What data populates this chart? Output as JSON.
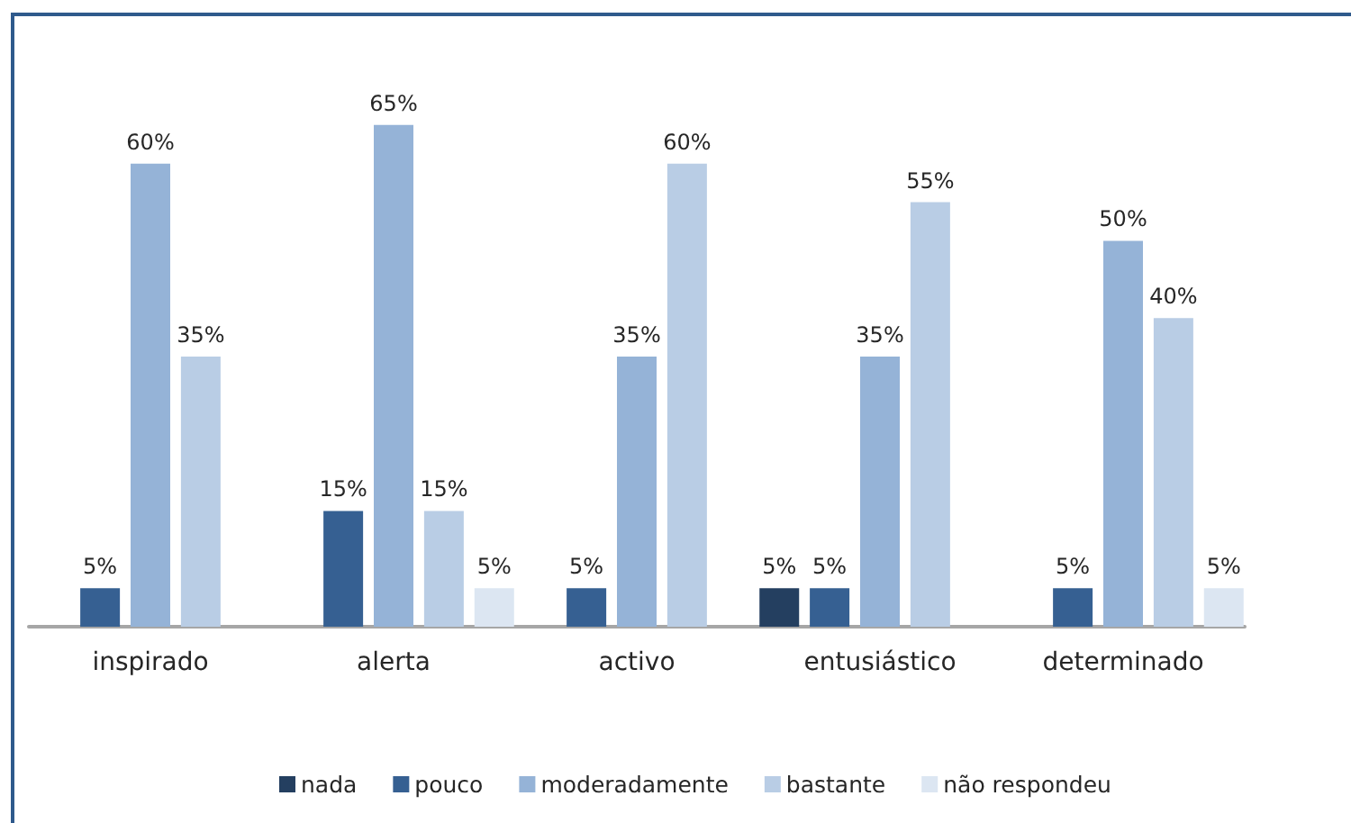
{
  "chart_data": {
    "type": "bar",
    "categories": [
      "inspirado",
      "alerta",
      "activo",
      "entusiástico",
      "determinado"
    ],
    "series": [
      {
        "name": "nada",
        "color": "#243f60",
        "values": [
          null,
          null,
          null,
          5,
          null
        ],
        "value_labels": [
          null,
          null,
          null,
          "5%",
          null
        ]
      },
      {
        "name": "pouco",
        "color": "#366092",
        "values": [
          5,
          15,
          5,
          5,
          5
        ],
        "value_labels": [
          "5%",
          "15%",
          "5%",
          "5%",
          "5%"
        ]
      },
      {
        "name": "moderadamente",
        "color": "#95b3d7",
        "values": [
          60,
          65,
          35,
          35,
          50
        ],
        "value_labels": [
          "60%",
          "65%",
          "35%",
          "35%",
          "50%"
        ]
      },
      {
        "name": "bastante",
        "color": "#b9cde5",
        "values": [
          35,
          15,
          60,
          55,
          40
        ],
        "value_labels": [
          "35%",
          "15%",
          "60%",
          "55%",
          "40%"
        ]
      },
      {
        "name": "não respondeu",
        "color": "#dce6f2",
        "values": [
          null,
          5,
          null,
          null,
          5
        ],
        "value_labels": [
          null,
          "5%",
          null,
          null,
          "5%"
        ]
      }
    ],
    "legend": "bottom"
  }
}
